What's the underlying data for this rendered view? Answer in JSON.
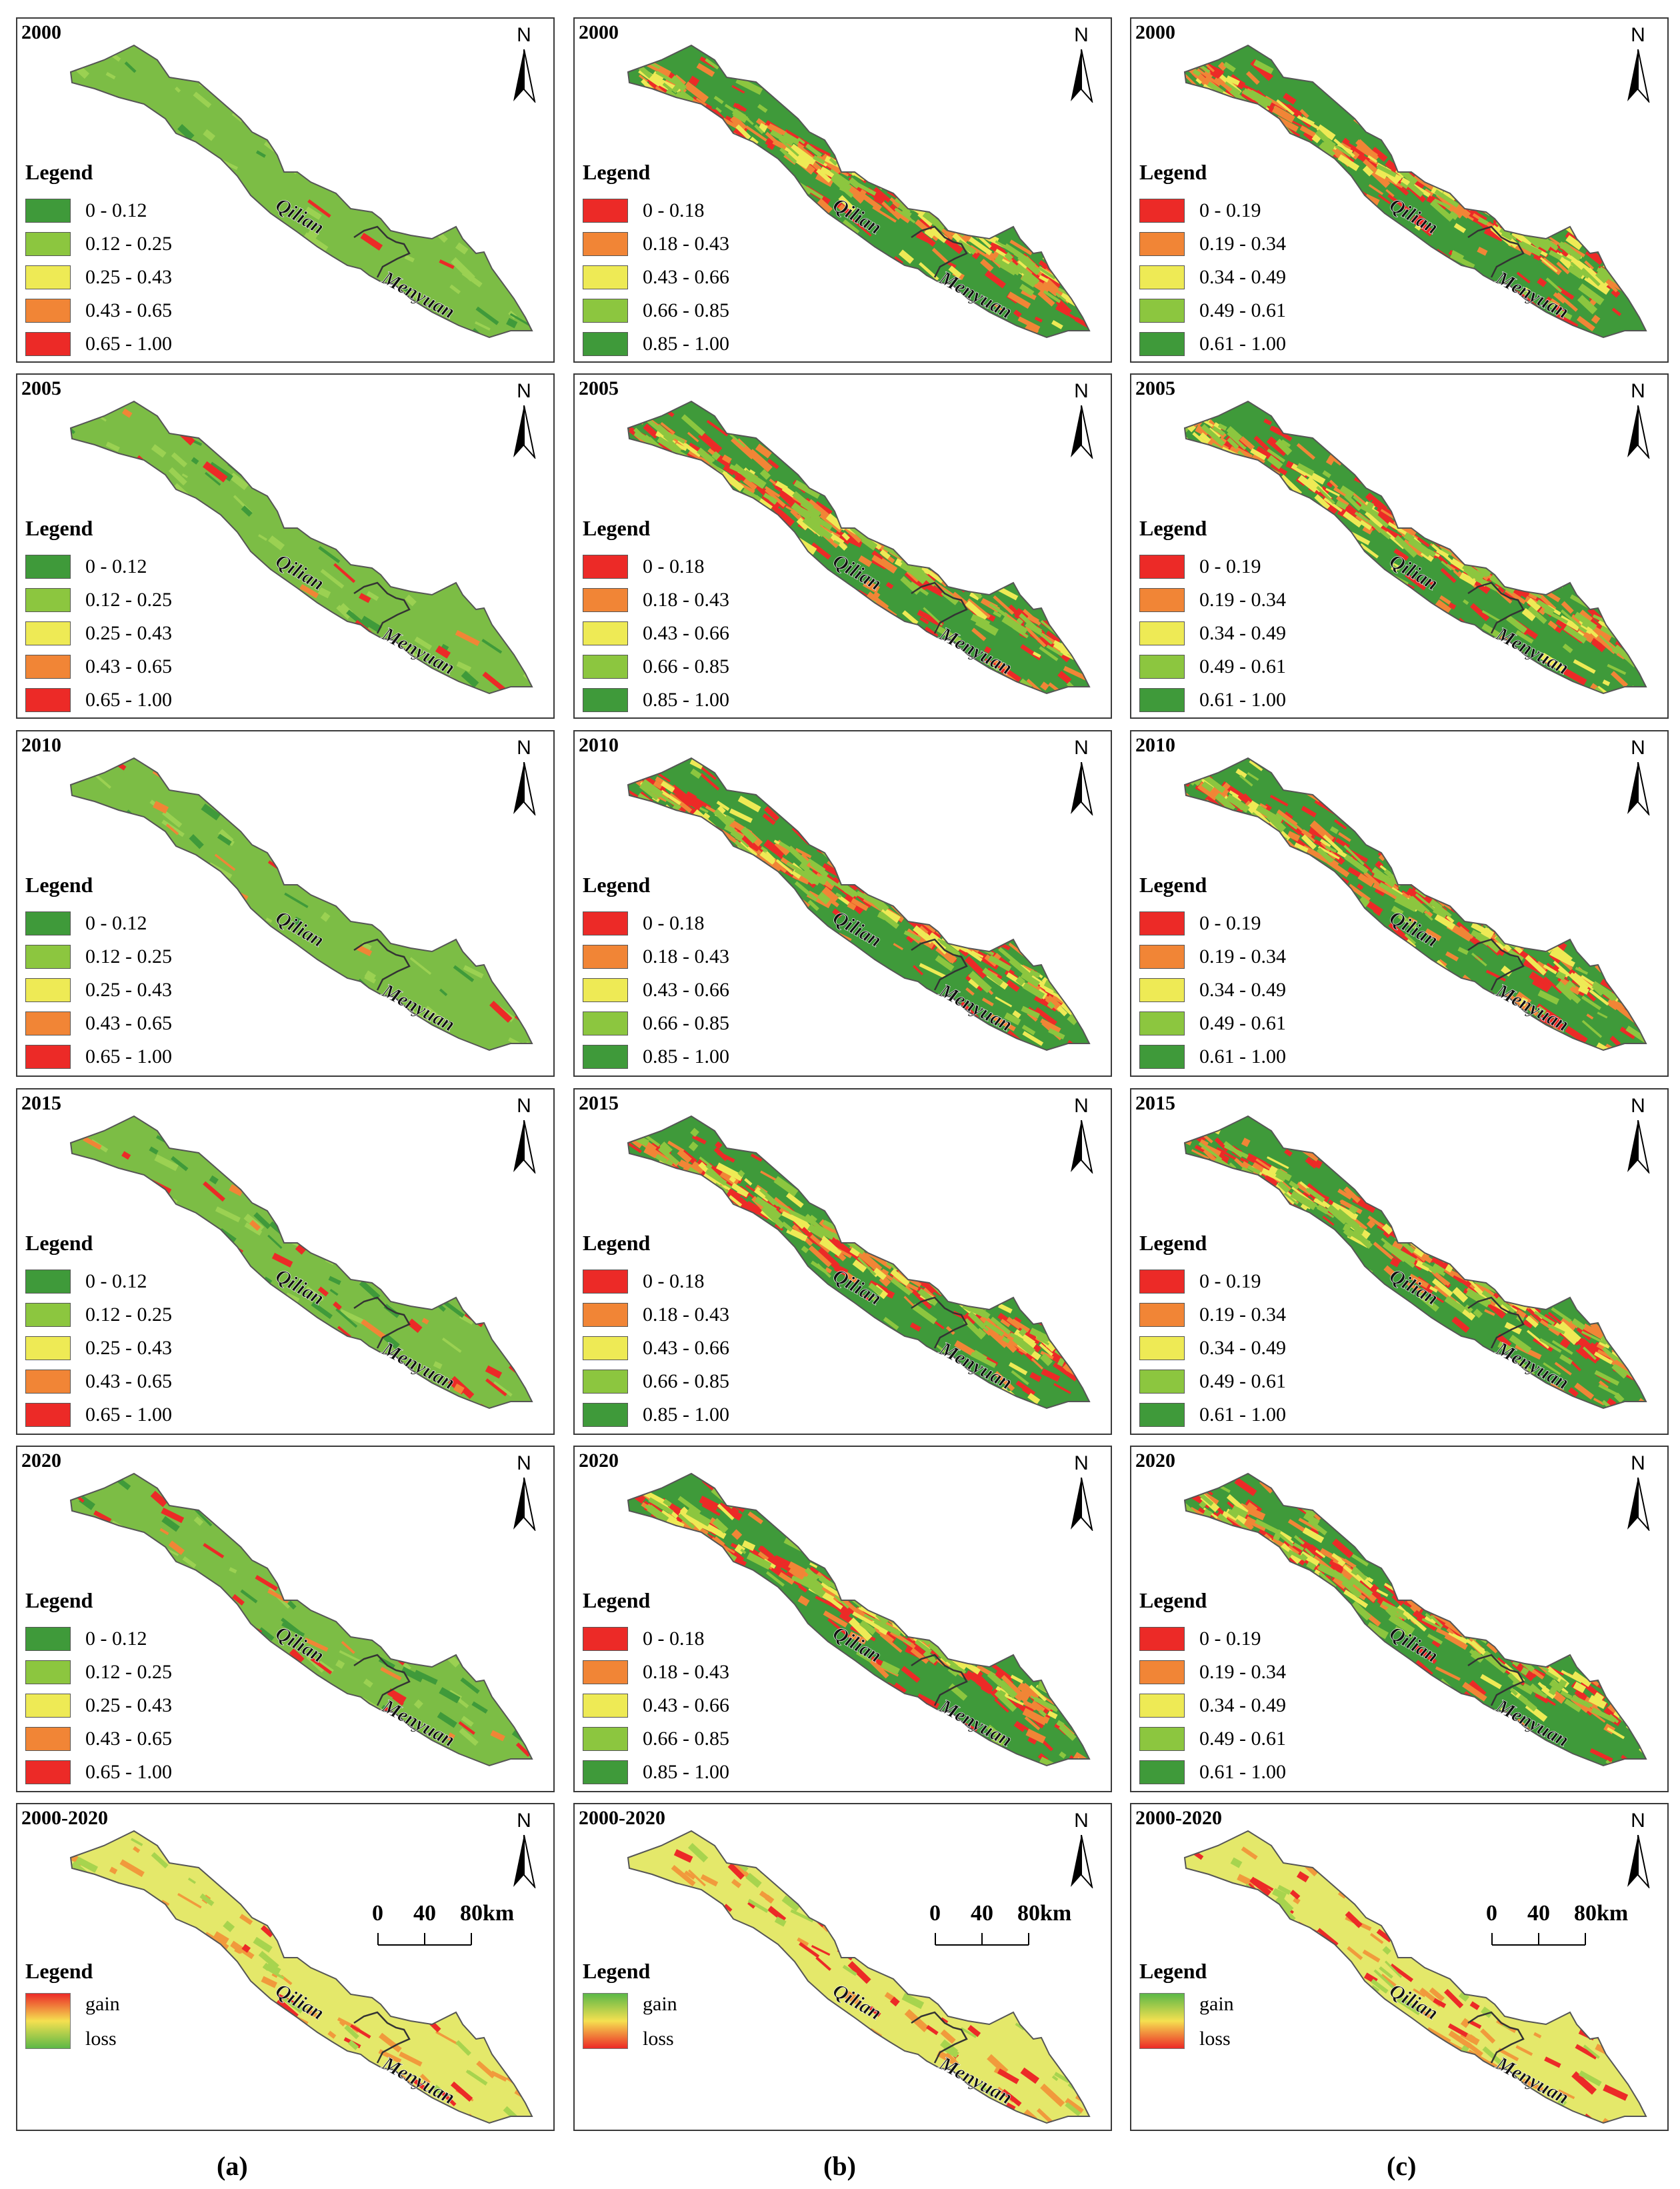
{
  "columns": [
    {
      "caption": "(a)",
      "legend_title": "Legend",
      "colors": [
        "#3f9a3a",
        "#8cc63f",
        "#eeea55",
        "#f18536",
        "#ec2a27"
      ],
      "classes": [
        "0 - 0.12",
        "0.12 - 0.25",
        "0.25 - 0.43",
        "0.43 - 0.65",
        "0.65 - 1.00"
      ],
      "change_labels": [
        "gain",
        "loss"
      ]
    },
    {
      "caption": "(b)",
      "legend_title": "Legend",
      "colors": [
        "#ec2a27",
        "#f18536",
        "#eeea55",
        "#8cc63f",
        "#3f9a3a"
      ],
      "classes": [
        "0 - 0.18",
        "0.18 - 0.43",
        "0.43 - 0.66",
        "0.66 - 0.85",
        "0.85 - 1.00"
      ],
      "change_labels": [
        "gain",
        "loss"
      ]
    },
    {
      "caption": "(c)",
      "legend_title": "Legend",
      "colors": [
        "#ec2a27",
        "#f18536",
        "#eeea55",
        "#8cc63f",
        "#3f9a3a"
      ],
      "classes": [
        "0 - 0.19",
        "0.19 - 0.34",
        "0.34 - 0.49",
        "0.49 - 0.61",
        "0.61 - 1.00"
      ],
      "change_labels": [
        "gain",
        "loss"
      ]
    }
  ],
  "years": [
    "2000",
    "2005",
    "2010",
    "2015",
    "2020"
  ],
  "change_period": "2000-2020",
  "north_label": "N",
  "region_labels": [
    "Qilian",
    "Menyuan"
  ],
  "scale_bar": {
    "ticks": [
      "0",
      "40",
      "80"
    ],
    "unit": "km"
  }
}
